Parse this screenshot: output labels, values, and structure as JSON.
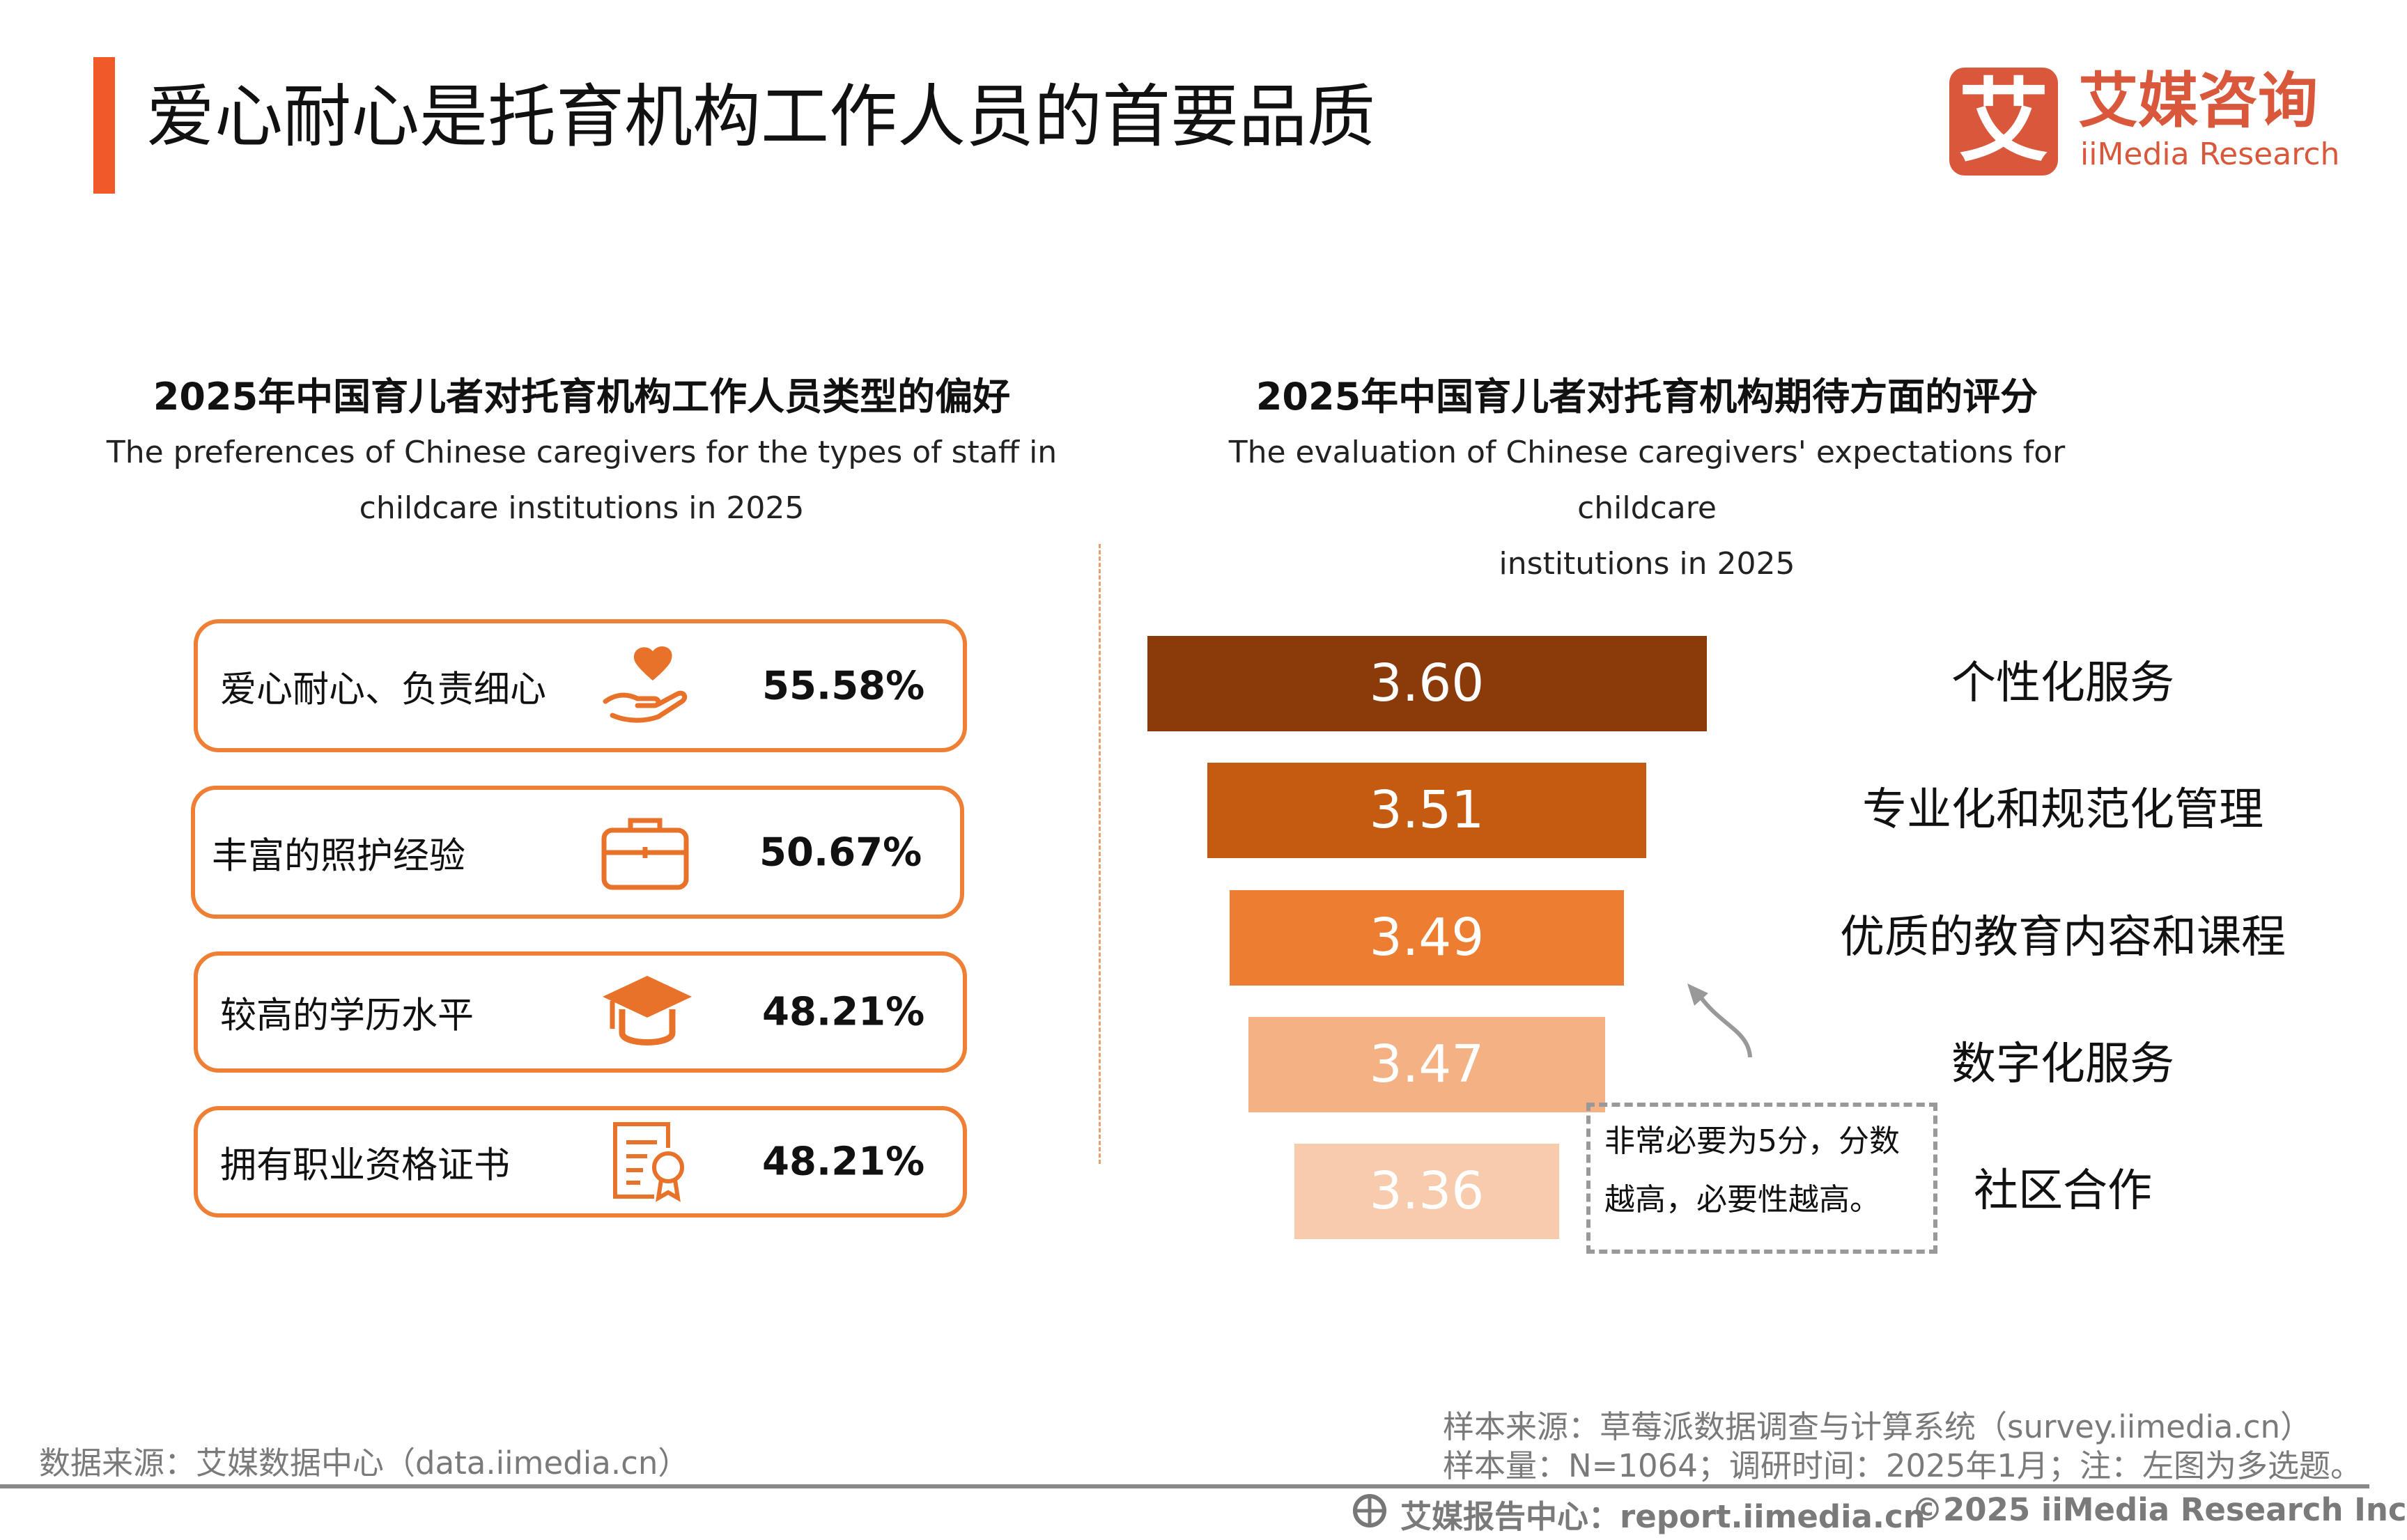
{
  "header": {
    "title": "爱心耐心是托育机构工作人员的首要品质",
    "accent_color": "#F05A28"
  },
  "logo": {
    "mark": "艾",
    "cn": "艾媒咨询",
    "en": "iiMedia Research",
    "color": "#D9583B"
  },
  "left": {
    "title_zh": "2025年中国育儿者对托育机构工作人员类型的偏好",
    "title_en_1": "The preferences of Chinese caregivers for the types of staff in",
    "title_en_2": "childcare institutions in 2025",
    "items": [
      {
        "label": "爱心耐心、负责细心",
        "icon": "heart-hand-icon",
        "value": "55.58%"
      },
      {
        "label": "丰富的照护经验",
        "icon": "briefcase-icon",
        "value": "50.67%"
      },
      {
        "label": "较高的学历水平",
        "icon": "graduation-cap-icon",
        "value": "48.21%"
      },
      {
        "label": "拥有职业资格证书",
        "icon": "certificate-icon",
        "value": "48.21%"
      }
    ],
    "border_color": "#EE7F34"
  },
  "right": {
    "title_zh": "2025年中国育儿者对托育机构期待方面的评分",
    "title_en_1": "The evaluation of Chinese caregivers' expectations for childcare",
    "title_en_2": "institutions in 2025",
    "note": "非常必要为5分，分数越高，必要性越高。"
  },
  "chart_data": {
    "type": "bar",
    "orientation": "funnel",
    "categories": [
      "个性化服务",
      "专业化和规范化管理",
      "优质的教育内容和课程",
      "数字化服务",
      "社区合作"
    ],
    "values": [
      3.6,
      3.51,
      3.49,
      3.47,
      3.36
    ],
    "labels": [
      "3.60",
      "3.51",
      "3.49",
      "3.47",
      "3.36"
    ],
    "colors": [
      "#8B3A0A",
      "#C55A11",
      "#ED7D31",
      "#F4B183",
      "#F8CBAD"
    ]
  },
  "footer": {
    "source": "数据来源：艾媒数据中心（data.iimedia.cn）",
    "sample_source": "样本来源：草莓派数据调查与计算系统（survey.iimedia.cn）",
    "sample_info": "样本量：N=1064；调研时间：2025年1月；注：左图为多选题。",
    "report_center": "艾媒报告中心：report.iimedia.cn",
    "copyright": "©2025  iiMedia Research  Inc"
  }
}
